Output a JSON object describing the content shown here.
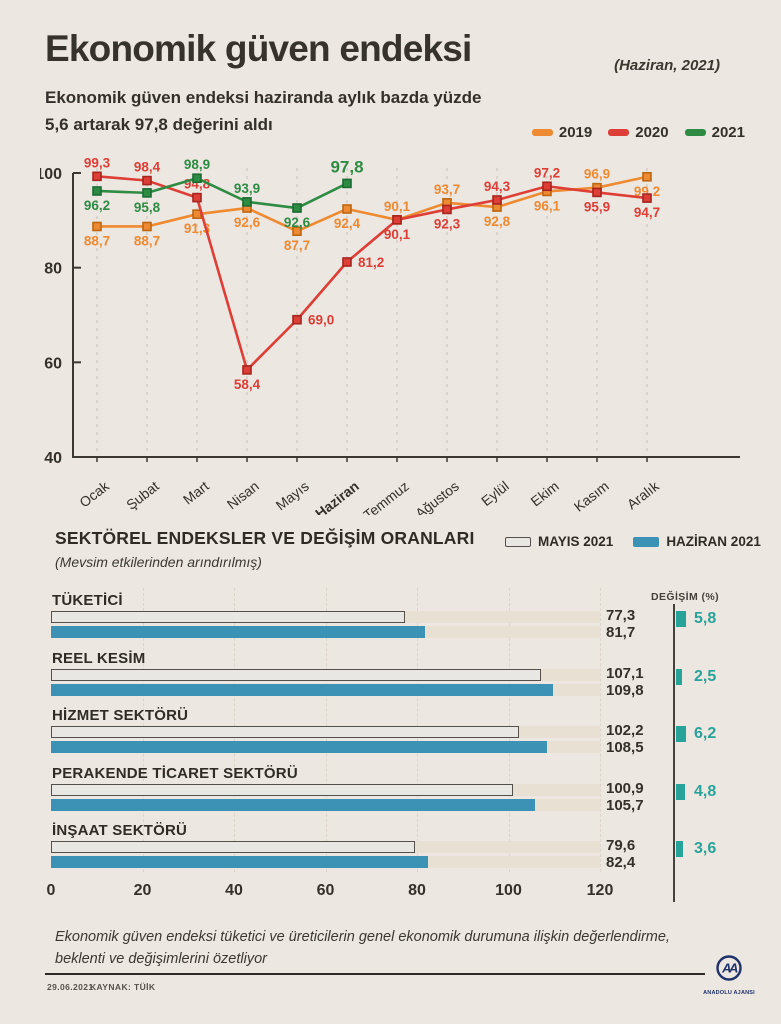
{
  "header": {
    "title": "Ekonomik güven endeksi",
    "date_note": "(Haziran, 2021)",
    "subtitle_line1": "Ekonomik güven endeksi haziranda aylık bazda yüzde",
    "subtitle_line2": "5,6 artarak 97,8 değerini aldı"
  },
  "chart_data": [
    {
      "id": "economic-confidence-line-chart",
      "type": "line",
      "x": [
        "Ocak",
        "Şubat",
        "Mart",
        "Nisan",
        "Mayıs",
        "Haziran",
        "Temmuz",
        "Ağustos",
        "Eylül",
        "Ekim",
        "Kasım",
        "Aralık"
      ],
      "bold_x_label": "Haziran",
      "ylim": [
        40,
        104
      ],
      "y_ticks": [
        100,
        80,
        60,
        40
      ],
      "grid": "vertical-dashed",
      "legend_position": "top-right",
      "value_label_format": "decimal-comma",
      "series": [
        {
          "name": "2019",
          "color": "#EE8A31",
          "marker_border": "#BD6612",
          "values": [
            88.7,
            88.7,
            91.3,
            92.6,
            87.7,
            92.4,
            90.1,
            93.7,
            92.8,
            96.1,
            96.9,
            99.2
          ],
          "label_pos": [
            "b",
            "b",
            "b",
            "b",
            "b",
            "b",
            "a",
            "a",
            "b",
            "b",
            "a",
            "b"
          ]
        },
        {
          "name": "2020",
          "color": "#DD3E36",
          "marker_border": "#A8241E",
          "values": [
            99.3,
            98.4,
            94.8,
            58.4,
            69.0,
            81.2,
            90.1,
            92.3,
            94.3,
            97.2,
            95.9,
            94.7
          ],
          "label_pos": [
            "a",
            "a",
            "a",
            "b",
            "r",
            "r",
            "b",
            "b",
            "a",
            "a",
            "b",
            "b"
          ]
        },
        {
          "name": "2021",
          "color": "#2E8B43",
          "marker_border": "#1C6B31",
          "values": [
            96.2,
            95.8,
            98.9,
            93.9,
            92.6,
            97.8
          ],
          "label_pos": [
            "b",
            "b",
            "a",
            "a",
            "b",
            "a"
          ],
          "highlight_last": true
        }
      ]
    },
    {
      "id": "sector-index-bar-chart",
      "type": "bar",
      "title": "SEKTÖREL ENDEKSLER VE DEĞİŞİM ORANLARI",
      "subtitle": "(Mevsim etkilerinden arındırılmış)",
      "change_header": "DEĞİŞİM (%)",
      "xlim": [
        0,
        120
      ],
      "x_ticks": [
        0,
        20,
        40,
        60,
        80,
        100,
        120
      ],
      "legend": [
        {
          "label": "MAYIS 2021",
          "fill": "#E9E7E3",
          "border": "#53504B"
        },
        {
          "label": "HAZİRAN 2021",
          "fill": "#3C92B4"
        }
      ],
      "categories": [
        "TÜKETİCİ",
        "REEL KESİM",
        "HİZMET SEKTÖRÜ",
        "PERAKENDE TİCARET SEKTÖRÜ",
        "İNŞAAT SEKTÖRÜ"
      ],
      "series": [
        {
          "name": "MAYIS 2021",
          "values": [
            77.3,
            107.1,
            102.2,
            100.9,
            79.6
          ]
        },
        {
          "name": "HAZİRAN 2021",
          "values": [
            81.7,
            109.8,
            108.5,
            105.7,
            82.4
          ]
        }
      ],
      "change_values": [
        5.8,
        2.5,
        6.2,
        4.8,
        3.6
      ],
      "change_color": "#28A39A"
    }
  ],
  "footer": {
    "note_line1": "Ekonomik güven endeksi tüketici ve üreticilerin genel ekonomik durumuna ilişkin değerlendirme,",
    "note_line2": "beklenti ve değişimlerini özetliyor",
    "date": "29.06.2021",
    "source": "KAYNAK: TÜİK",
    "logo_text": "AA",
    "agency": "ANADOLU AJANSI"
  },
  "colors": {
    "background": "#ECE7E1",
    "text": "#34312B",
    "year_2019": "#EE8A31",
    "year_2020": "#DD3E36",
    "year_2021": "#2E8B43",
    "bar_may": "#E9E7E3",
    "bar_june": "#3C92B4",
    "change": "#28A39A",
    "track": "#E9E0D4",
    "logo_navy": "#20326B"
  }
}
